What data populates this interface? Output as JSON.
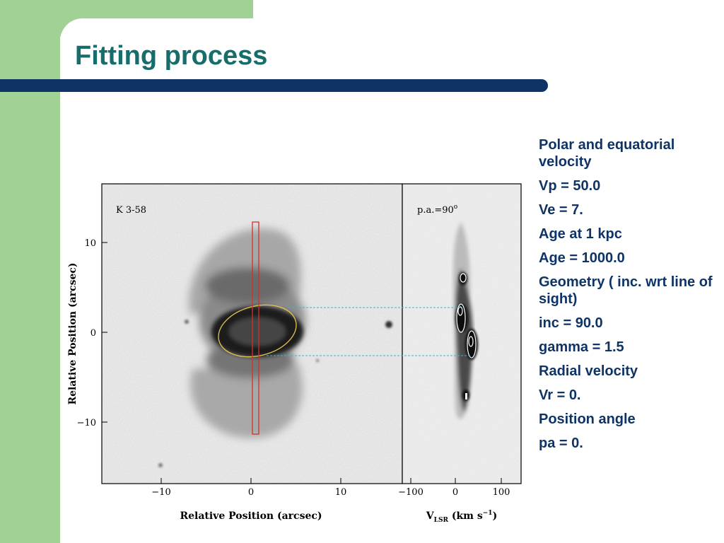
{
  "slide": {
    "title": "Fitting process",
    "colors": {
      "green": "#a2d196",
      "title": "#176d6b",
      "navy": "#0e3465",
      "overlay_red": "#d0312d",
      "overlay_ellipse": "#e6c454",
      "dashed_cyan": "#37b7c8"
    }
  },
  "figure": {
    "left_panel": {
      "label": "K 3-58",
      "xlabel": "Relative Position (arcsec)",
      "ylabel": "Relative Position (arcsec)",
      "xticks": [
        "−10",
        "0",
        "10"
      ],
      "yticks": [
        "10",
        "0",
        "−10"
      ]
    },
    "right_panel": {
      "label": "p.a.=90",
      "label_sup": "o",
      "xticks": [
        "−100",
        "0",
        "100"
      ],
      "xlabel_main": "V",
      "xlabel_sub": "LSR",
      "xlabel_units": "(km s",
      "xlabel_exp": "−1",
      "xlabel_close": ")"
    }
  },
  "params": [
    "Polar and equatorial velocity",
    "Vp = 50.0",
    "Ve = 7.",
    "Age at 1 kpc",
    "Age = 1000.0",
    "Geometry  ( inc. wrt line of sight)",
    "inc = 90.0",
    "gamma = 1.5",
    "Radial velocity",
    "Vr = 0.",
    "Position angle",
    "pa = 0."
  ]
}
